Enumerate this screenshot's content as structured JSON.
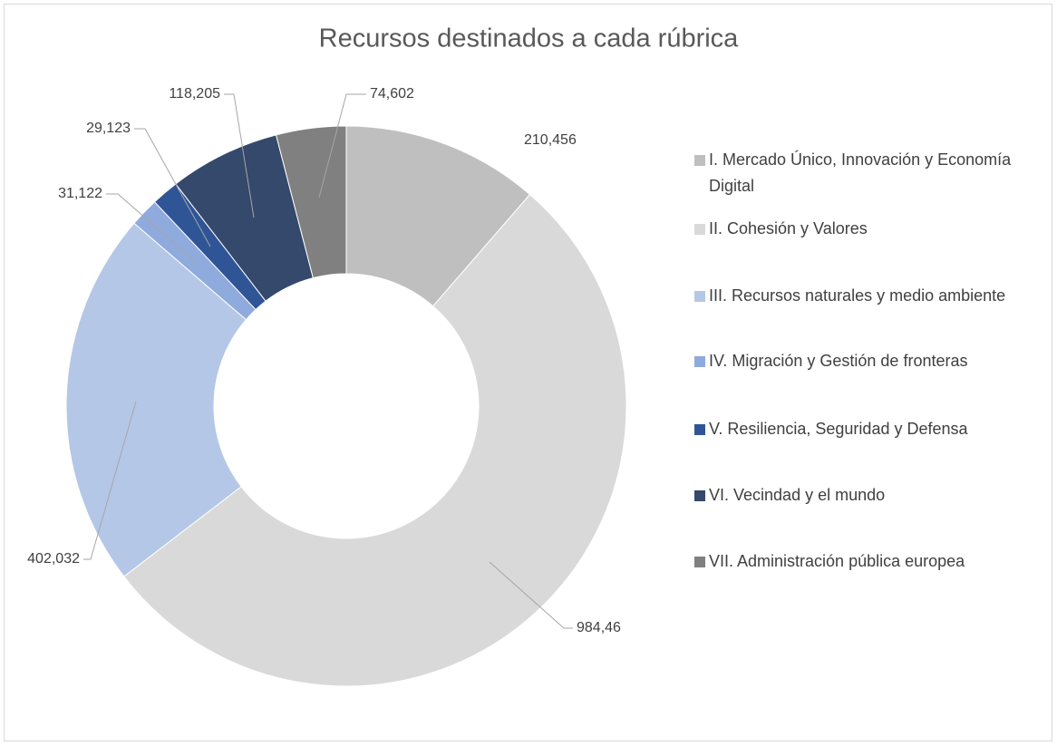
{
  "chart_data": {
    "type": "donut",
    "title": "Recursos destinados a cada rúbrica",
    "categories": [
      "I. Mercado Único, Innovación y Economía Digital",
      "II. Cohesión y Valores",
      "III. Recursos naturales y medio ambiente",
      "IV. Migración y Gestión de fronteras",
      "V. Resiliencia, Seguridad y Defensa",
      "VI. Vecindad y el mundo",
      "VII. Administración pública europea"
    ],
    "values": [
      210.456,
      984.46,
      402.032,
      31.122,
      29.123,
      118.205,
      74.602
    ],
    "value_labels": [
      "210,456",
      "984,46",
      "402,032",
      "31,122",
      "29,123",
      "118,205",
      "74,602"
    ],
    "colors": [
      "#bfbfbf",
      "#d9d9d9",
      "#b4c7e7",
      "#8faadc",
      "#2f5597",
      "#34496b",
      "#808080"
    ],
    "legend": "right"
  }
}
